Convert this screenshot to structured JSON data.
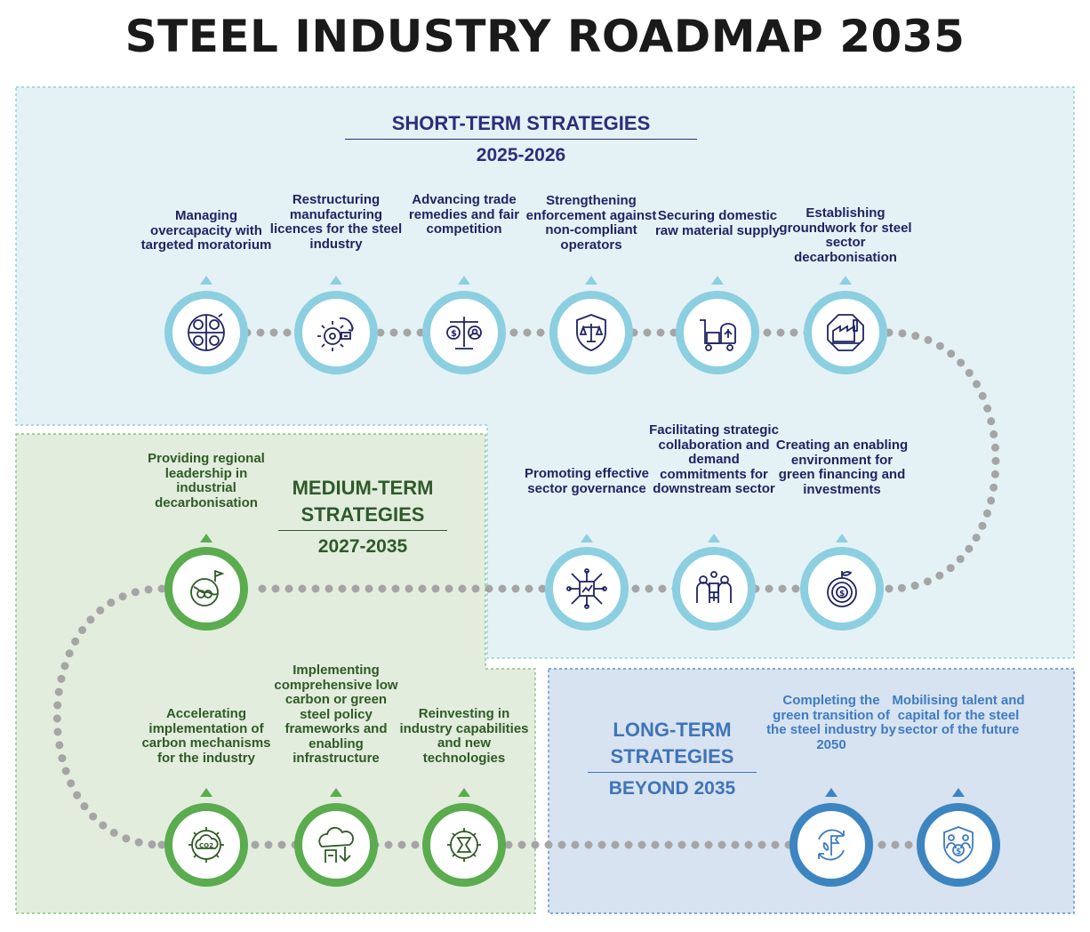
{
  "title": "STEEL INDUSTRY ROADMAP 2035",
  "colors": {
    "short_fill": "#e4f2f6",
    "medium_fill": "#e2eddd",
    "long_fill": "#d7e3f1",
    "connector_dots": "#a5a5a5",
    "short_ring": "#8ccfe0",
    "medium_ring": "#5aac4e",
    "long_ring": "#3d85c0"
  },
  "short_term": {
    "heading": "SHORT-TERM STRATEGIES",
    "years": "2025-2026",
    "items": [
      {
        "label": "Managing overcapacity with targeted moratorium",
        "icon": "capacity-quadrant-icon"
      },
      {
        "label": "Restructuring manufacturing licences for the steel industry",
        "icon": "gear-restructure-icon"
      },
      {
        "label": "Advancing trade remedies and fair competition",
        "icon": "balance-scale-icon"
      },
      {
        "label": "Strengthening enforcement against non-compliant operators",
        "icon": "shield-scale-icon"
      },
      {
        "label": "Securing domestic raw material supply",
        "icon": "supply-cart-icon"
      },
      {
        "label": "Establishing groundwork for steel sector decarbonisation",
        "icon": "factory-octagon-icon"
      },
      {
        "label": "Creating an enabling environment for green financing and investments",
        "icon": "green-finance-icon"
      },
      {
        "label": "Facilitating strategic collaboration and demand commitments for downstream sector",
        "icon": "collaboration-people-icon"
      },
      {
        "label": "Promoting effective sector governance",
        "icon": "governance-network-icon"
      }
    ]
  },
  "medium_term": {
    "heading_line1": "MEDIUM-TERM",
    "heading_line2": "STRATEGIES",
    "years": "2027-2035",
    "items": [
      {
        "label": "Providing regional leadership in industrial decarbonisation",
        "icon": "globe-flag-icon"
      },
      {
        "label": "Accelerating implementation of carbon mechanisms for the industry",
        "icon": "co2-gear-icon"
      },
      {
        "label": "Implementing comprehensive low carbon or green steel policy frameworks and enabling infrastructure",
        "icon": "green-policy-icon"
      },
      {
        "label": "Reinvesting in industry capabilities and new technologies",
        "icon": "reinvest-gear-icon"
      }
    ]
  },
  "long_term": {
    "heading_line1": "LONG-TERM",
    "heading_line2": "STRATEGIES",
    "years": "BEYOND 2035",
    "items": [
      {
        "label": "Completing the green transition of the steel industry by 2050",
        "icon": "green-transition-cycle-icon"
      },
      {
        "label": "Mobilising talent and capital for the steel sector of the future",
        "icon": "talent-capital-icon"
      }
    ]
  }
}
